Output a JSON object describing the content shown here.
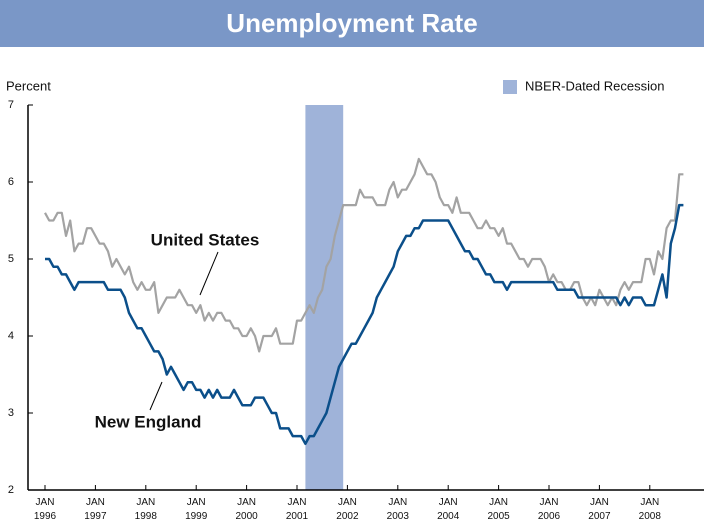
{
  "chart_data": {
    "type": "line",
    "title": "Unemployment Rate",
    "y_axis_label": "Percent",
    "categories": [
      "JAN 1996",
      null,
      null,
      null,
      null,
      null,
      null,
      null,
      null,
      null,
      null,
      null,
      "JAN 1997",
      null,
      null,
      null,
      null,
      null,
      null,
      null,
      null,
      null,
      null,
      null,
      "JAN 1998",
      null,
      null,
      null,
      null,
      null,
      null,
      null,
      null,
      null,
      null,
      null,
      "JAN 1999",
      null,
      null,
      null,
      null,
      null,
      null,
      null,
      null,
      null,
      null,
      null,
      "JAN 2000",
      null,
      null,
      null,
      null,
      null,
      null,
      null,
      null,
      null,
      null,
      null,
      "JAN 2001",
      null,
      null,
      null,
      null,
      null,
      null,
      null,
      null,
      null,
      null,
      null,
      "JAN 2002",
      null,
      null,
      null,
      null,
      null,
      null,
      null,
      null,
      null,
      null,
      null,
      "JAN 2003",
      null,
      null,
      null,
      null,
      null,
      null,
      null,
      null,
      null,
      null,
      null,
      "JAN 2004",
      null,
      null,
      null,
      null,
      null,
      null,
      null,
      null,
      null,
      null,
      null,
      "JAN 2005",
      null,
      null,
      null,
      null,
      null,
      null,
      null,
      null,
      null,
      null,
      null,
      "JAN 2006",
      null,
      null,
      null,
      null,
      null,
      null,
      null,
      null,
      null,
      null,
      null,
      "JAN 2007",
      null,
      null,
      null,
      null,
      null,
      null,
      null,
      null,
      null,
      null,
      null,
      "JAN 2008",
      null,
      null,
      null,
      null,
      null,
      null,
      null,
      null
    ],
    "series": [
      {
        "name": "United States",
        "color": "#a3a3a3",
        "values": [
          5.6,
          5.5,
          5.5,
          5.6,
          5.6,
          5.3,
          5.5,
          5.1,
          5.2,
          5.2,
          5.4,
          5.4,
          5.3,
          5.2,
          5.2,
          5.1,
          4.9,
          5.0,
          4.9,
          4.8,
          4.9,
          4.7,
          4.6,
          4.7,
          4.6,
          4.6,
          4.7,
          4.3,
          4.4,
          4.5,
          4.5,
          4.5,
          4.6,
          4.5,
          4.4,
          4.4,
          4.3,
          4.4,
          4.2,
          4.3,
          4.2,
          4.3,
          4.3,
          4.2,
          4.2,
          4.1,
          4.1,
          4.0,
          4.0,
          4.1,
          4.0,
          3.8,
          4.0,
          4.0,
          4.0,
          4.1,
          3.9,
          3.9,
          3.9,
          3.9,
          4.2,
          4.2,
          4.3,
          4.4,
          4.3,
          4.5,
          4.6,
          4.9,
          5.0,
          5.3,
          5.5,
          5.7,
          5.7,
          5.7,
          5.7,
          5.9,
          5.8,
          5.8,
          5.8,
          5.7,
          5.7,
          5.7,
          5.9,
          6.0,
          5.8,
          5.9,
          5.9,
          6.0,
          6.1,
          6.3,
          6.2,
          6.1,
          6.1,
          6.0,
          5.8,
          5.7,
          5.7,
          5.6,
          5.8,
          5.6,
          5.6,
          5.6,
          5.5,
          5.4,
          5.4,
          5.5,
          5.4,
          5.4,
          5.3,
          5.4,
          5.2,
          5.2,
          5.1,
          5.0,
          5.0,
          4.9,
          5.0,
          5.0,
          5.0,
          4.9,
          4.7,
          4.8,
          4.7,
          4.7,
          4.6,
          4.6,
          4.7,
          4.7,
          4.5,
          4.4,
          4.5,
          4.4,
          4.6,
          4.5,
          4.4,
          4.5,
          4.4,
          4.6,
          4.7,
          4.6,
          4.7,
          4.7,
          4.7,
          5.0,
          5.0,
          4.8,
          5.1,
          5.0,
          5.4,
          5.5,
          5.5,
          6.1,
          6.1
        ]
      },
      {
        "name": "New England",
        "color": "#0b4f8a",
        "values": [
          5.0,
          5.0,
          4.9,
          4.9,
          4.8,
          4.8,
          4.7,
          4.6,
          4.7,
          4.7,
          4.7,
          4.7,
          4.7,
          4.7,
          4.7,
          4.6,
          4.6,
          4.6,
          4.6,
          4.5,
          4.3,
          4.2,
          4.1,
          4.1,
          4.0,
          3.9,
          3.8,
          3.8,
          3.7,
          3.5,
          3.6,
          3.5,
          3.4,
          3.3,
          3.4,
          3.4,
          3.3,
          3.3,
          3.2,
          3.3,
          3.2,
          3.3,
          3.2,
          3.2,
          3.2,
          3.3,
          3.2,
          3.1,
          3.1,
          3.1,
          3.2,
          3.2,
          3.2,
          3.1,
          3.0,
          3.0,
          2.8,
          2.8,
          2.8,
          2.7,
          2.7,
          2.7,
          2.6,
          2.7,
          2.7,
          2.8,
          2.9,
          3.0,
          3.2,
          3.4,
          3.6,
          3.7,
          3.8,
          3.9,
          3.9,
          4.0,
          4.1,
          4.2,
          4.3,
          4.5,
          4.6,
          4.7,
          4.8,
          4.9,
          5.1,
          5.2,
          5.3,
          5.3,
          5.4,
          5.4,
          5.5,
          5.5,
          5.5,
          5.5,
          5.5,
          5.5,
          5.5,
          5.4,
          5.3,
          5.2,
          5.1,
          5.1,
          5.0,
          5.0,
          4.9,
          4.8,
          4.8,
          4.7,
          4.7,
          4.7,
          4.6,
          4.7,
          4.7,
          4.7,
          4.7,
          4.7,
          4.7,
          4.7,
          4.7,
          4.7,
          4.7,
          4.7,
          4.6,
          4.6,
          4.6,
          4.6,
          4.6,
          4.5,
          4.5,
          4.5,
          4.5,
          4.5,
          4.5,
          4.5,
          4.5,
          4.5,
          4.5,
          4.4,
          4.5,
          4.4,
          4.5,
          4.5,
          4.5,
          4.4,
          4.4,
          4.4,
          4.6,
          4.8,
          4.5,
          5.2,
          5.4,
          5.7,
          5.7
        ]
      }
    ],
    "recession": {
      "name": "NBER-Dated Recession",
      "color": "#9fb3d9",
      "start": 62,
      "end": 71
    },
    "ylim": [
      2,
      7
    ],
    "yticks": [
      2,
      3,
      4,
      5,
      6,
      7
    ],
    "grid": false,
    "legend": "top-right"
  }
}
